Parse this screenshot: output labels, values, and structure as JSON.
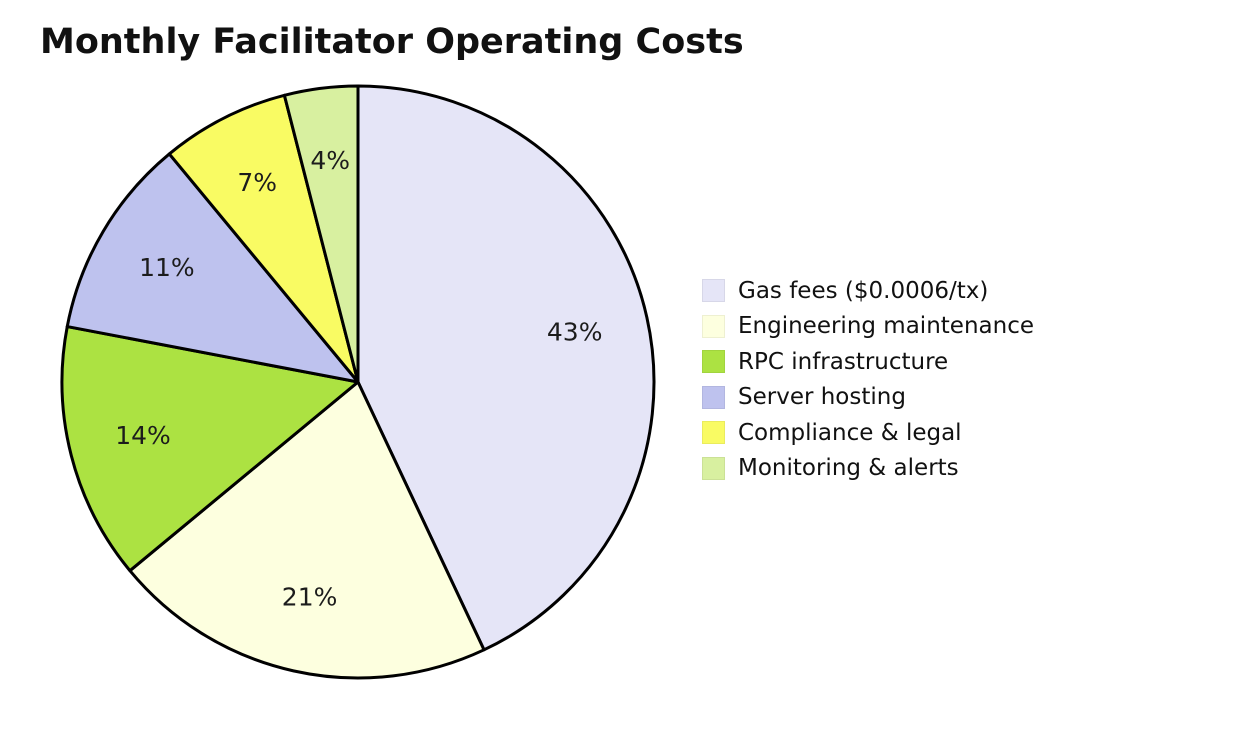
{
  "page": {
    "background_color": "#ffffff",
    "title": "Monthly Facilitator Operating Costs"
  },
  "chart_data": {
    "type": "pie",
    "title": "Monthly Facilitator Operating Costs",
    "total": 100,
    "stroke_color": "#000000",
    "stroke_width": 3,
    "legend_position": "right",
    "label_format": "percent",
    "slices": [
      {
        "id": "gas-fees",
        "label": "Gas fees ($0.0006/tx)",
        "value": 43,
        "percent_label": "43%",
        "color": "#E5E5F7"
      },
      {
        "id": "engineering-maintenance",
        "label": "Engineering maintenance",
        "value": 21,
        "percent_label": "21%",
        "color": "#FDFFDF"
      },
      {
        "id": "rpc-infrastructure",
        "label": "RPC infrastructure",
        "value": 14,
        "percent_label": "14%",
        "color": "#ACE242"
      },
      {
        "id": "server-hosting",
        "label": "Server hosting",
        "value": 11,
        "percent_label": "11%",
        "color": "#BEC2EE"
      },
      {
        "id": "compliance-legal",
        "label": "Compliance & legal",
        "value": 7,
        "percent_label": "7%",
        "color": "#F9FB63"
      },
      {
        "id": "monitoring-alerts",
        "label": "Monitoring & alerts",
        "value": 4,
        "percent_label": "4%",
        "color": "#D8F0A0"
      }
    ]
  }
}
